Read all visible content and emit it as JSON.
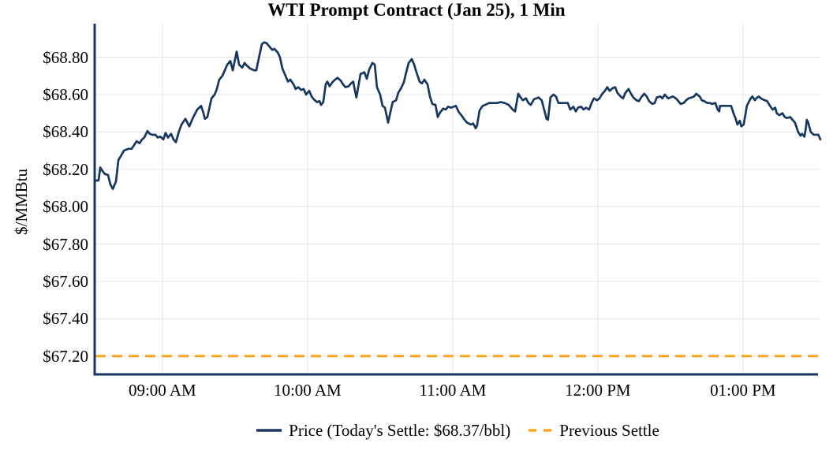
{
  "chart_data": {
    "type": "line",
    "title": "WTI Prompt Contract (Jan 25), 1 Min",
    "xlabel": "",
    "ylabel": "$/MMBtu",
    "grid": true,
    "legend_position": "bottom-center",
    "x_axis": {
      "min": 0,
      "max": 300,
      "unit": "minutes",
      "start_time": "08:32 AM",
      "end_time": "01:32 PM"
    },
    "y_axis": {
      "min": 67.102,
      "max": 68.98
    },
    "y_ticks": [
      {
        "value": 68.8,
        "label": "$68.80"
      },
      {
        "value": 68.6,
        "label": "$68.60"
      },
      {
        "value": 68.4,
        "label": "$68.40"
      },
      {
        "value": 68.2,
        "label": "$68.20"
      },
      {
        "value": 68.0,
        "label": "$68.00"
      },
      {
        "value": 67.8,
        "label": "$67.80"
      },
      {
        "value": 67.6,
        "label": "$67.60"
      },
      {
        "value": 67.4,
        "label": "$67.40"
      },
      {
        "value": 67.2,
        "label": "$67.20"
      }
    ],
    "x_ticks": [
      {
        "t": 28,
        "label": "09:00 AM"
      },
      {
        "t": 88,
        "label": "10:00 AM"
      },
      {
        "t": 148,
        "label": "11:00 AM"
      },
      {
        "t": 208,
        "label": "12:00 PM"
      },
      {
        "t": 268,
        "label": "01:00 PM"
      }
    ],
    "legend": {
      "price": "Price (Today's Settle: $68.37/bbl)",
      "previous": "Previous Settle"
    },
    "todays_settle": 68.37,
    "previous_settle": 67.2,
    "colors": {
      "price_line": "#17375E",
      "previous_settle_line": "#FFA420",
      "gridline": "#E4E4E4",
      "axis": "#17375E",
      "text": "#000000",
      "background": "#FFFFFF"
    },
    "series": [
      {
        "name": "Price",
        "style": "solid",
        "points": [
          [
            0,
            68.14
          ],
          [
            1.6,
            68.14
          ],
          [
            2.3,
            68.21
          ],
          [
            3.3,
            68.19
          ],
          [
            4.2,
            68.175
          ],
          [
            5.5,
            68.17
          ],
          [
            6.5,
            68.12
          ],
          [
            7.5,
            68.095
          ],
          [
            8.8,
            68.135
          ],
          [
            9.8,
            68.25
          ],
          [
            10.8,
            68.27
          ],
          [
            12.1,
            68.3
          ],
          [
            13,
            68.305
          ],
          [
            14,
            68.31
          ],
          [
            15.3,
            68.31
          ],
          [
            16.3,
            68.33
          ],
          [
            17.3,
            68.35
          ],
          [
            18.6,
            68.34
          ],
          [
            19.6,
            68.36
          ],
          [
            20.5,
            68.37
          ],
          [
            21.8,
            68.405
          ],
          [
            22.8,
            68.39
          ],
          [
            23.8,
            68.385
          ],
          [
            25.1,
            68.385
          ],
          [
            26.1,
            68.37
          ],
          [
            27.1,
            68.375
          ],
          [
            28.4,
            68.36
          ],
          [
            29.3,
            68.395
          ],
          [
            30.3,
            68.37
          ],
          [
            31.6,
            68.39
          ],
          [
            32.6,
            68.36
          ],
          [
            33.6,
            68.345
          ],
          [
            34.9,
            68.405
          ],
          [
            35.9,
            68.44
          ],
          [
            37.5,
            68.47
          ],
          [
            39.1,
            68.43
          ],
          [
            40.8,
            68.48
          ],
          [
            42.4,
            68.52
          ],
          [
            44,
            68.54
          ],
          [
            45,
            68.5
          ],
          [
            45.6,
            68.47
          ],
          [
            46.6,
            68.48
          ],
          [
            48.3,
            68.58
          ],
          [
            49.6,
            68.6
          ],
          [
            50.5,
            68.63
          ],
          [
            51.5,
            68.68
          ],
          [
            52.8,
            68.7
          ],
          [
            53.8,
            68.73
          ],
          [
            54.8,
            68.76
          ],
          [
            56.1,
            68.78
          ],
          [
            57.1,
            68.73
          ],
          [
            58.7,
            68.83
          ],
          [
            59.7,
            68.76
          ],
          [
            61,
            68.745
          ],
          [
            62,
            68.77
          ],
          [
            62.9,
            68.755
          ],
          [
            64.2,
            68.74
          ],
          [
            65.9,
            68.73
          ],
          [
            66.8,
            68.73
          ],
          [
            67.8,
            68.79
          ],
          [
            69.1,
            68.87
          ],
          [
            70.1,
            68.88
          ],
          [
            71.1,
            68.875
          ],
          [
            72.4,
            68.855
          ],
          [
            73.4,
            68.84
          ],
          [
            74.3,
            68.845
          ],
          [
            75.7,
            68.825
          ],
          [
            76.6,
            68.8
          ],
          [
            77.6,
            68.74
          ],
          [
            78.9,
            68.7
          ],
          [
            79.9,
            68.67
          ],
          [
            80.9,
            68.68
          ],
          [
            82.2,
            68.655
          ],
          [
            83.1,
            68.63
          ],
          [
            84.1,
            68.64
          ],
          [
            85.4,
            68.625
          ],
          [
            86.4,
            68.63
          ],
          [
            87.4,
            68.6
          ],
          [
            88.7,
            68.62
          ],
          [
            89.7,
            68.59
          ],
          [
            90.6,
            68.575
          ],
          [
            91.9,
            68.56
          ],
          [
            92.9,
            68.565
          ],
          [
            93.6,
            68.545
          ],
          [
            94.5,
            68.56
          ],
          [
            95.5,
            68.655
          ],
          [
            96.2,
            68.67
          ],
          [
            97.1,
            68.645
          ],
          [
            98.5,
            68.67
          ],
          [
            99.4,
            68.68
          ],
          [
            100.4,
            68.69
          ],
          [
            101.7,
            68.675
          ],
          [
            102.7,
            68.655
          ],
          [
            103.7,
            68.64
          ],
          [
            105,
            68.645
          ],
          [
            106,
            68.66
          ],
          [
            106.9,
            68.67
          ],
          [
            107.6,
            68.62
          ],
          [
            108.2,
            68.585
          ],
          [
            109.9,
            68.71
          ],
          [
            111.5,
            68.72
          ],
          [
            112.5,
            68.685
          ],
          [
            113.5,
            68.735
          ],
          [
            114.8,
            68.77
          ],
          [
            115.8,
            68.76
          ],
          [
            116.7,
            68.64
          ],
          [
            118,
            68.6
          ],
          [
            119,
            68.54
          ],
          [
            120,
            68.53
          ],
          [
            121.3,
            68.45
          ],
          [
            122.3,
            68.51
          ],
          [
            123.2,
            68.56
          ],
          [
            124.6,
            68.57
          ],
          [
            125.5,
            68.61
          ],
          [
            126.5,
            68.63
          ],
          [
            127.8,
            68.665
          ],
          [
            128.8,
            68.72
          ],
          [
            129.8,
            68.77
          ],
          [
            131.1,
            68.79
          ],
          [
            132.1,
            68.76
          ],
          [
            133,
            68.72
          ],
          [
            134.3,
            68.67
          ],
          [
            135.3,
            68.66
          ],
          [
            136.3,
            68.68
          ],
          [
            137.6,
            68.655
          ],
          [
            138.6,
            68.59
          ],
          [
            139.6,
            68.55
          ],
          [
            140.9,
            68.545
          ],
          [
            141.8,
            68.48
          ],
          [
            142.8,
            68.505
          ],
          [
            144.1,
            68.525
          ],
          [
            145.1,
            68.52
          ],
          [
            146.1,
            68.535
          ],
          [
            147.4,
            68.53
          ],
          [
            148.4,
            68.535
          ],
          [
            149.3,
            68.54
          ],
          [
            150.6,
            68.505
          ],
          [
            151.6,
            68.49
          ],
          [
            152.6,
            68.47
          ],
          [
            153.9,
            68.45
          ],
          [
            155.5,
            68.44
          ],
          [
            156.5,
            68.445
          ],
          [
            157.5,
            68.42
          ],
          [
            158.1,
            68.435
          ],
          [
            159.1,
            68.515
          ],
          [
            160.4,
            68.54
          ],
          [
            161.4,
            68.545
          ],
          [
            163,
            68.555
          ],
          [
            166.3,
            68.555
          ],
          [
            167.9,
            68.56
          ],
          [
            169.5,
            68.555
          ],
          [
            171.2,
            68.545
          ],
          [
            172.8,
            68.52
          ],
          [
            173.8,
            68.51
          ],
          [
            175.1,
            68.605
          ],
          [
            176.1,
            68.585
          ],
          [
            177,
            68.57
          ],
          [
            178.3,
            68.58
          ],
          [
            179.3,
            68.555
          ],
          [
            180.3,
            68.545
          ],
          [
            181.6,
            68.575
          ],
          [
            182.6,
            68.58
          ],
          [
            183.5,
            68.585
          ],
          [
            184.8,
            68.57
          ],
          [
            185.8,
            68.52
          ],
          [
            186.8,
            68.47
          ],
          [
            187.4,
            68.465
          ],
          [
            188.4,
            68.585
          ],
          [
            189.7,
            68.6
          ],
          [
            190.7,
            68.59
          ],
          [
            191.7,
            68.555
          ],
          [
            193,
            68.555
          ],
          [
            195.6,
            68.555
          ],
          [
            196.6,
            68.52
          ],
          [
            197.9,
            68.535
          ],
          [
            198.9,
            68.51
          ],
          [
            199.8,
            68.53
          ],
          [
            201.1,
            68.535
          ],
          [
            202.1,
            68.52
          ],
          [
            203.1,
            68.53
          ],
          [
            204.4,
            68.52
          ],
          [
            205.4,
            68.555
          ],
          [
            206.4,
            68.58
          ],
          [
            207.7,
            68.57
          ],
          [
            208.7,
            68.58
          ],
          [
            209.6,
            68.6
          ],
          [
            210.9,
            68.62
          ],
          [
            211.9,
            68.64
          ],
          [
            212.9,
            68.62
          ],
          [
            214.2,
            68.635
          ],
          [
            215.2,
            68.64
          ],
          [
            216.1,
            68.61
          ],
          [
            217.4,
            68.59
          ],
          [
            218.4,
            68.58
          ],
          [
            219.4,
            68.61
          ],
          [
            220.7,
            68.63
          ],
          [
            221.7,
            68.605
          ],
          [
            222.7,
            68.585
          ],
          [
            224,
            68.57
          ],
          [
            225,
            68.565
          ],
          [
            225.9,
            68.585
          ],
          [
            227.2,
            68.605
          ],
          [
            228.2,
            68.59
          ],
          [
            229.2,
            68.565
          ],
          [
            230.5,
            68.55
          ],
          [
            231.5,
            68.555
          ],
          [
            232.4,
            68.585
          ],
          [
            233.8,
            68.59
          ],
          [
            234.7,
            68.58
          ],
          [
            235.7,
            68.6
          ],
          [
            237,
            68.58
          ],
          [
            238,
            68.585
          ],
          [
            239,
            68.59
          ],
          [
            240.3,
            68.58
          ],
          [
            241.3,
            68.565
          ],
          [
            242.2,
            68.55
          ],
          [
            243.5,
            68.555
          ],
          [
            244.5,
            68.57
          ],
          [
            245.5,
            68.58
          ],
          [
            246.8,
            68.585
          ],
          [
            247.8,
            68.59
          ],
          [
            248.7,
            68.605
          ],
          [
            250.1,
            68.59
          ],
          [
            251,
            68.57
          ],
          [
            252,
            68.565
          ],
          [
            253.3,
            68.555
          ],
          [
            254.3,
            68.555
          ],
          [
            255.2,
            68.55
          ],
          [
            256.6,
            68.555
          ],
          [
            257.5,
            68.52
          ],
          [
            258.2,
            68.51
          ],
          [
            258.5,
            68.54
          ],
          [
            259.8,
            68.54
          ],
          [
            260.8,
            68.54
          ],
          [
            261.8,
            68.54
          ],
          [
            263.1,
            68.54
          ],
          [
            264.1,
            68.5
          ],
          [
            265,
            68.47
          ],
          [
            265.7,
            68.44
          ],
          [
            266.7,
            68.46
          ],
          [
            267.3,
            68.43
          ],
          [
            268.3,
            68.44
          ],
          [
            269.6,
            68.54
          ],
          [
            270.6,
            68.565
          ],
          [
            271.2,
            68.58
          ],
          [
            271.9,
            68.59
          ],
          [
            272.9,
            68.57
          ],
          [
            273.5,
            68.58
          ],
          [
            274.5,
            68.59
          ],
          [
            275.4,
            68.58
          ],
          [
            276.1,
            68.575
          ],
          [
            277.1,
            68.57
          ],
          [
            278,
            68.565
          ],
          [
            279.4,
            68.535
          ],
          [
            280.3,
            68.52
          ],
          [
            281.3,
            68.53
          ],
          [
            282,
            68.5
          ],
          [
            283,
            68.49
          ],
          [
            284.3,
            68.5
          ],
          [
            285.3,
            68.48
          ],
          [
            286.2,
            68.475
          ],
          [
            287.5,
            68.48
          ],
          [
            288.5,
            68.465
          ],
          [
            289.5,
            68.45
          ],
          [
            290.8,
            68.4
          ],
          [
            291.8,
            68.38
          ],
          [
            292.4,
            68.39
          ],
          [
            293.4,
            68.375
          ],
          [
            294,
            68.42
          ],
          [
            294.4,
            68.465
          ],
          [
            295,
            68.45
          ],
          [
            296,
            68.4
          ],
          [
            297.3,
            68.385
          ],
          [
            298.3,
            68.385
          ],
          [
            299.2,
            68.385
          ],
          [
            300,
            68.36
          ]
        ]
      },
      {
        "name": "Previous Settle",
        "style": "dashed",
        "hline_value": 67.2
      }
    ]
  }
}
